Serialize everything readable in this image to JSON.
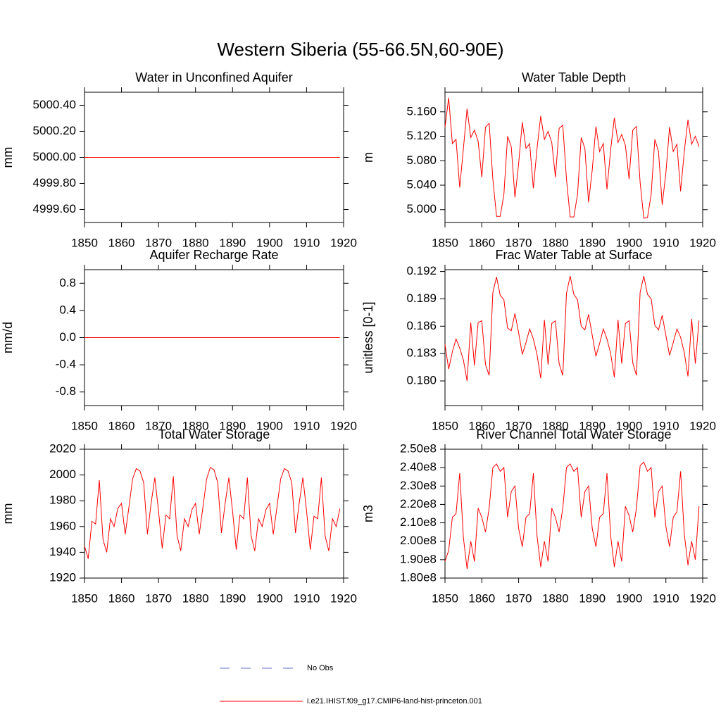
{
  "title": "Western Siberia (55-66.5N,60-90E)",
  "legend": [
    {
      "name": "No Obs",
      "color": "#6a72c8",
      "dashed": true
    },
    {
      "name": "i.e21.IHIST.f09_g17.CMIP6-land-hist-princeton.001",
      "color": "#ff0000",
      "dashed": false
    }
  ],
  "chart_data": [
    {
      "type": "line",
      "title": "Water in Unconfined Aquifer",
      "y_label": "mm",
      "x": [
        1850,
        1851,
        1852,
        1853,
        1854,
        1855,
        1856,
        1857,
        1858,
        1859,
        1860,
        1861,
        1862,
        1863,
        1864,
        1865,
        1866,
        1867,
        1868,
        1869,
        1870,
        1871,
        1872,
        1873,
        1874,
        1875,
        1876,
        1877,
        1878,
        1879,
        1880,
        1881,
        1882,
        1883,
        1884,
        1885,
        1886,
        1887,
        1888,
        1889,
        1890,
        1891,
        1892,
        1893,
        1894,
        1895,
        1896,
        1897,
        1898,
        1899,
        1900,
        1901,
        1902,
        1903,
        1904,
        1905,
        1906,
        1907,
        1908,
        1909,
        1910,
        1911,
        1912,
        1913,
        1914,
        1915,
        1916,
        1917,
        1918,
        1919
      ],
      "xlim": [
        1850,
        1920
      ],
      "xticks": [
        1850,
        1860,
        1870,
        1880,
        1890,
        1900,
        1910,
        1920
      ],
      "ylim": [
        4999.5,
        5000.5
      ],
      "yticks": [
        {
          "value": 4999.6,
          "label": "4999.60"
        },
        {
          "value": 4999.8,
          "label": "4999.80"
        },
        {
          "value": 5000,
          "label": "5000.00"
        },
        {
          "value": 5000.2,
          "label": "5000.20"
        },
        {
          "value": 5000.4,
          "label": "5000.40"
        }
      ],
      "series": [
        {
          "color": "#ff0000",
          "values": [
            5000,
            5000,
            5000,
            5000,
            5000,
            5000,
            5000,
            5000,
            5000,
            5000,
            5000,
            5000,
            5000,
            5000,
            5000,
            5000,
            5000,
            5000,
            5000,
            5000,
            5000,
            5000,
            5000,
            5000,
            5000,
            5000,
            5000,
            5000,
            5000,
            5000,
            5000,
            5000,
            5000,
            5000,
            5000,
            5000,
            5000,
            5000,
            5000,
            5000,
            5000,
            5000,
            5000,
            5000,
            5000,
            5000,
            5000,
            5000,
            5000,
            5000,
            5000,
            5000,
            5000,
            5000,
            5000,
            5000,
            5000,
            5000,
            5000,
            5000,
            5000,
            5000,
            5000,
            5000,
            5000,
            5000,
            5000,
            5000,
            5000,
            5000
          ]
        }
      ]
    },
    {
      "type": "line",
      "title": "Water Table Depth",
      "y_label": "m",
      "x": [
        1850,
        1851,
        1852,
        1853,
        1854,
        1855,
        1856,
        1857,
        1858,
        1859,
        1860,
        1861,
        1862,
        1863,
        1864,
        1865,
        1866,
        1867,
        1868,
        1869,
        1870,
        1871,
        1872,
        1873,
        1874,
        1875,
        1876,
        1877,
        1878,
        1879,
        1880,
        1881,
        1882,
        1883,
        1884,
        1885,
        1886,
        1887,
        1888,
        1889,
        1890,
        1891,
        1892,
        1893,
        1894,
        1895,
        1896,
        1897,
        1898,
        1899,
        1900,
        1901,
        1902,
        1903,
        1904,
        1905,
        1906,
        1907,
        1908,
        1909,
        1910,
        1911,
        1912,
        1913,
        1914,
        1915,
        1916,
        1917,
        1918,
        1919
      ],
      "xlim": [
        1850,
        1920
      ],
      "xticks": [
        1850,
        1860,
        1870,
        1880,
        1890,
        1900,
        1910,
        1920
      ],
      "ylim": [
        4.979,
        5.192
      ],
      "yticks": [
        {
          "value": 5.0,
          "label": "5.000"
        },
        {
          "value": 5.04,
          "label": "5.040"
        },
        {
          "value": 5.08,
          "label": "5.080"
        },
        {
          "value": 5.12,
          "label": "5.120"
        },
        {
          "value": 5.16,
          "label": "5.160"
        }
      ],
      "series": [
        {
          "color": "#ff0000",
          "values": [
            5.135,
            5.183,
            5.108,
            5.115,
            5.036,
            5.1,
            5.165,
            5.118,
            5.13,
            5.112,
            5.053,
            5.135,
            5.141,
            5.05,
            4.989,
            4.989,
            5.025,
            5.12,
            5.103,
            5.02,
            5.075,
            5.143,
            5.1,
            5.108,
            5.035,
            5.1,
            5.153,
            5.115,
            5.128,
            5.11,
            5.053,
            5.133,
            5.138,
            5.05,
            4.988,
            4.988,
            5.025,
            5.118,
            5.1,
            5.012,
            5.065,
            5.136,
            5.095,
            5.108,
            5.033,
            5.098,
            5.15,
            5.11,
            5.123,
            5.105,
            5.05,
            5.13,
            5.136,
            5.045,
            4.986,
            4.987,
            5.025,
            5.115,
            5.095,
            5.008,
            5.06,
            5.135,
            5.095,
            5.107,
            5.03,
            5.095,
            5.147,
            5.107,
            5.12,
            5.103
          ]
        }
      ]
    },
    {
      "type": "line",
      "title": "Aquifer Recharge Rate",
      "y_label": "mm/d",
      "x": [
        1850,
        1851,
        1852,
        1853,
        1854,
        1855,
        1856,
        1857,
        1858,
        1859,
        1860,
        1861,
        1862,
        1863,
        1864,
        1865,
        1866,
        1867,
        1868,
        1869,
        1870,
        1871,
        1872,
        1873,
        1874,
        1875,
        1876,
        1877,
        1878,
        1879,
        1880,
        1881,
        1882,
        1883,
        1884,
        1885,
        1886,
        1887,
        1888,
        1889,
        1890,
        1891,
        1892,
        1893,
        1894,
        1895,
        1896,
        1897,
        1898,
        1899,
        1900,
        1901,
        1902,
        1903,
        1904,
        1905,
        1906,
        1907,
        1908,
        1909,
        1910,
        1911,
        1912,
        1913,
        1914,
        1915,
        1916,
        1917,
        1918,
        1919
      ],
      "xlim": [
        1850,
        1920
      ],
      "xticks": [
        1850,
        1860,
        1870,
        1880,
        1890,
        1900,
        1910,
        1920
      ],
      "ylim": [
        -1,
        1
      ],
      "yticks": [
        -0.8,
        -0.4,
        {
          "value": 0,
          "label": "0.0"
        },
        0.4,
        0.8
      ],
      "series": [
        {
          "color": "#ff0000",
          "values": [
            0,
            0,
            0,
            0,
            0,
            0,
            0,
            0,
            0,
            0,
            0,
            0,
            0,
            0,
            0,
            0,
            0,
            0,
            0,
            0,
            0,
            0,
            0,
            0,
            0,
            0,
            0,
            0,
            0,
            0,
            0,
            0,
            0,
            0,
            0,
            0,
            0,
            0,
            0,
            0,
            0,
            0,
            0,
            0,
            0,
            0,
            0,
            0,
            0,
            0,
            0,
            0,
            0,
            0,
            0,
            0,
            0,
            0,
            0,
            0,
            0,
            0,
            0,
            0,
            0,
            0,
            0,
            0,
            0,
            0
          ]
        }
      ]
    },
    {
      "type": "line",
      "title": "Frac Water Table at Surface",
      "y_label": "unitless [0-1]",
      "x": [
        1850,
        1851,
        1852,
        1853,
        1854,
        1855,
        1856,
        1857,
        1858,
        1859,
        1860,
        1861,
        1862,
        1863,
        1864,
        1865,
        1866,
        1867,
        1868,
        1869,
        1870,
        1871,
        1872,
        1873,
        1874,
        1875,
        1876,
        1877,
        1878,
        1879,
        1880,
        1881,
        1882,
        1883,
        1884,
        1885,
        1886,
        1887,
        1888,
        1889,
        1890,
        1891,
        1892,
        1893,
        1894,
        1895,
        1896,
        1897,
        1898,
        1899,
        1900,
        1901,
        1902,
        1903,
        1904,
        1905,
        1906,
        1907,
        1908,
        1909,
        1910,
        1911,
        1912,
        1913,
        1914,
        1915,
        1916,
        1917,
        1918,
        1919
      ],
      "xlim": [
        1850,
        1920
      ],
      "xticks": [
        1850,
        1860,
        1870,
        1880,
        1890,
        1900,
        1910,
        1920
      ],
      "ylim": [
        0.1773,
        0.1922
      ],
      "yticks": [
        {
          "value": 0.18,
          "label": "0.180"
        },
        0.183,
        0.186,
        0.189,
        0.192
      ],
      "series": [
        {
          "color": "#ff0000",
          "values": [
            0.184,
            0.1813,
            0.1832,
            0.1846,
            0.1836,
            0.1823,
            0.18,
            0.1864,
            0.1817,
            0.1864,
            0.1866,
            0.1818,
            0.1806,
            0.1897,
            0.1914,
            0.1894,
            0.1889,
            0.1858,
            0.1855,
            0.1874,
            0.1853,
            0.1829,
            0.1842,
            0.1857,
            0.1846,
            0.1829,
            0.1803,
            0.1867,
            0.1818,
            0.1863,
            0.1866,
            0.1819,
            0.1806,
            0.1896,
            0.1915,
            0.1895,
            0.1889,
            0.186,
            0.1856,
            0.1873,
            0.185,
            0.1827,
            0.1841,
            0.1857,
            0.1846,
            0.183,
            0.1804,
            0.1867,
            0.1819,
            0.1863,
            0.1866,
            0.182,
            0.1806,
            0.1897,
            0.1915,
            0.1895,
            0.189,
            0.1861,
            0.1856,
            0.1872,
            0.185,
            0.1828,
            0.1842,
            0.1857,
            0.1848,
            0.1831,
            0.1805,
            0.1868,
            0.1819,
            0.1866
          ]
        }
      ]
    },
    {
      "type": "line",
      "title": "Total Water Storage",
      "y_label": "mm",
      "x": [
        1850,
        1851,
        1852,
        1853,
        1854,
        1855,
        1856,
        1857,
        1858,
        1859,
        1860,
        1861,
        1862,
        1863,
        1864,
        1865,
        1866,
        1867,
        1868,
        1869,
        1870,
        1871,
        1872,
        1873,
        1874,
        1875,
        1876,
        1877,
        1878,
        1879,
        1880,
        1881,
        1882,
        1883,
        1884,
        1885,
        1886,
        1887,
        1888,
        1889,
        1890,
        1891,
        1892,
        1893,
        1894,
        1895,
        1896,
        1897,
        1898,
        1899,
        1900,
        1901,
        1902,
        1903,
        1904,
        1905,
        1906,
        1907,
        1908,
        1909,
        1910,
        1911,
        1912,
        1913,
        1914,
        1915,
        1916,
        1917,
        1918,
        1919
      ],
      "xlim": [
        1850,
        1920
      ],
      "xticks": [
        1850,
        1860,
        1870,
        1880,
        1890,
        1900,
        1910,
        1920
      ],
      "ylim": [
        1920,
        2020
      ],
      "yticks": [
        1920,
        1940,
        1960,
        1980,
        2000,
        2020
      ],
      "series": [
        {
          "color": "#ff0000",
          "values": [
            1945,
            1935,
            1964,
            1962,
            1996,
            1950,
            1940,
            1966,
            1960,
            1974,
            1978,
            1954,
            1975,
            1997,
            2005,
            2003,
            1994,
            1954,
            1978,
            1998,
            1972,
            1943,
            1969,
            1966,
            1999,
            1953,
            1941,
            1966,
            1960,
            1973,
            1978,
            1954,
            1975,
            1997,
            2006,
            2004,
            1994,
            1955,
            1978,
            1998,
            1972,
            1942,
            1969,
            1966,
            1998,
            1953,
            1941,
            1966,
            1960,
            1973,
            1978,
            1954,
            1975,
            1997,
            2005,
            2003,
            1994,
            1955,
            1978,
            1998,
            1972,
            1942,
            1968,
            1966,
            1998,
            1953,
            1941,
            1966,
            1960,
            1974
          ]
        }
      ]
    },
    {
      "type": "line",
      "title": "River Channel Total Water Storage",
      "y_label": "m3",
      "x": [
        1850,
        1851,
        1852,
        1853,
        1854,
        1855,
        1856,
        1857,
        1858,
        1859,
        1860,
        1861,
        1862,
        1863,
        1864,
        1865,
        1866,
        1867,
        1868,
        1869,
        1870,
        1871,
        1872,
        1873,
        1874,
        1875,
        1876,
        1877,
        1878,
        1879,
        1880,
        1881,
        1882,
        1883,
        1884,
        1885,
        1886,
        1887,
        1888,
        1889,
        1890,
        1891,
        1892,
        1893,
        1894,
        1895,
        1896,
        1897,
        1898,
        1899,
        1900,
        1901,
        1902,
        1903,
        1904,
        1905,
        1906,
        1907,
        1908,
        1909,
        1910,
        1911,
        1912,
        1913,
        1914,
        1915,
        1916,
        1917,
        1918,
        1919
      ],
      "xlim": [
        1850,
        1920
      ],
      "xticks": [
        1850,
        1860,
        1870,
        1880,
        1890,
        1900,
        1910,
        1920
      ],
      "ylim": [
        180000000.0,
        250000000.0
      ],
      "yticks": [
        {
          "value": 180000000.0,
          "label": "1.80e8"
        },
        {
          "value": 190000000.0,
          "label": "1.90e8"
        },
        {
          "value": 200000000.0,
          "label": "2.00e8"
        },
        {
          "value": 210000000.0,
          "label": "2.10e8"
        },
        {
          "value": 220000000.0,
          "label": "2.20e8"
        },
        {
          "value": 230000000.0,
          "label": "2.30e8"
        },
        {
          "value": 240000000.0,
          "label": "2.40e8"
        },
        {
          "value": 250000000.0,
          "label": "2.50e8"
        }
      ],
      "series": [
        {
          "color": "#ff0000",
          "values": [
            189000000.0,
            195000000.0,
            213000000.0,
            215000000.0,
            237000000.0,
            202000000.0,
            185000000.0,
            200000000.0,
            189000000.0,
            218000000.0,
            213000000.0,
            205000000.0,
            218000000.0,
            240000000.0,
            242000000.0,
            238000000.0,
            240000000.0,
            213000000.0,
            227000000.0,
            230000000.0,
            207000000.0,
            197000000.0,
            213000000.0,
            215000000.0,
            237000000.0,
            203000000.0,
            186000000.0,
            200000000.0,
            189000000.0,
            218000000.0,
            213000000.0,
            205000000.0,
            218000000.0,
            240000000.0,
            242000000.0,
            238000000.0,
            240000000.0,
            213000000.0,
            227000000.0,
            230000000.0,
            207000000.0,
            197000000.0,
            213000000.0,
            215000000.0,
            237000000.0,
            203000000.0,
            186000000.0,
            200000000.0,
            189000000.0,
            219000000.0,
            214000000.0,
            205000000.0,
            218000000.0,
            241000000.0,
            243000000.0,
            238000000.0,
            240000000.0,
            213000000.0,
            227000000.0,
            230000000.0,
            208000000.0,
            197000000.0,
            213000000.0,
            216000000.0,
            238000000.0,
            204000000.0,
            187000000.0,
            200000000.0,
            190000000.0,
            219000000.0
          ]
        }
      ]
    }
  ]
}
